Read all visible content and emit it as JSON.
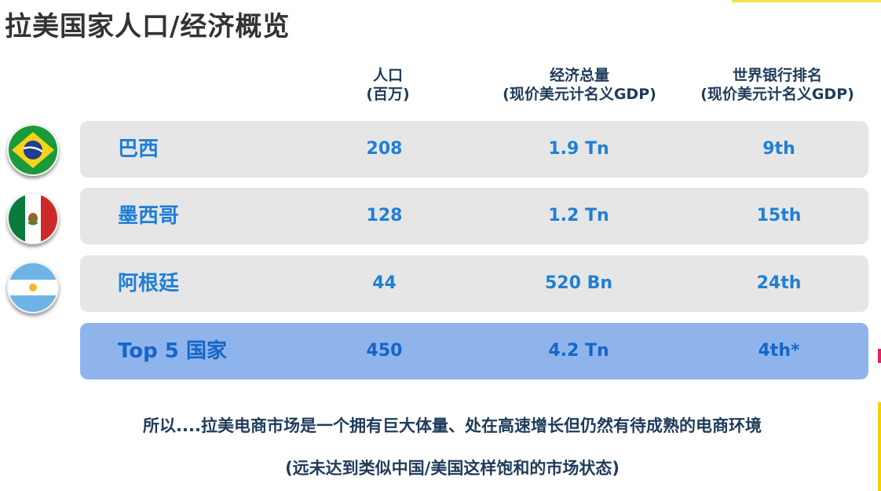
{
  "title": "拉美国家人口/经济概览",
  "headers": {
    "population": [
      "人口",
      "(百万)"
    ],
    "gdp": [
      "经济总量",
      "(现价美元计名义GDP)"
    ],
    "rank": [
      "世界银行排名",
      "(现价美元计名义GDP)"
    ]
  },
  "rows": [
    {
      "name": "巴西",
      "population": "208",
      "gdp": "1.9 Tn",
      "rank": "9th",
      "flag": "brazil-flag-icon"
    },
    {
      "name": "墨西哥",
      "population": "128",
      "gdp": "1.2 Tn",
      "rank": "15th",
      "flag": "mexico-flag-icon"
    },
    {
      "name": "阿根廷",
      "population": "44",
      "gdp": "520 Bn",
      "rank": "24th",
      "flag": "argentina-flag-icon"
    }
  ],
  "total": {
    "name": "Top 5 国家",
    "population": "450",
    "gdp": "4.2 Tn",
    "rank": "4th*"
  },
  "summary": {
    "line1": "所以....拉美电商市场是一个拥有巨大体量、处在高速增长但仍然有待成熟的电商环境",
    "line2": "(远未达到类似中国/美国这样饱和的市场状态)"
  },
  "colors": {
    "row_bg": "#e6e6e6",
    "total_bg": "#8fb4ec",
    "value_text": "#1f7fd6",
    "header_text": "#1f3b5a"
  }
}
